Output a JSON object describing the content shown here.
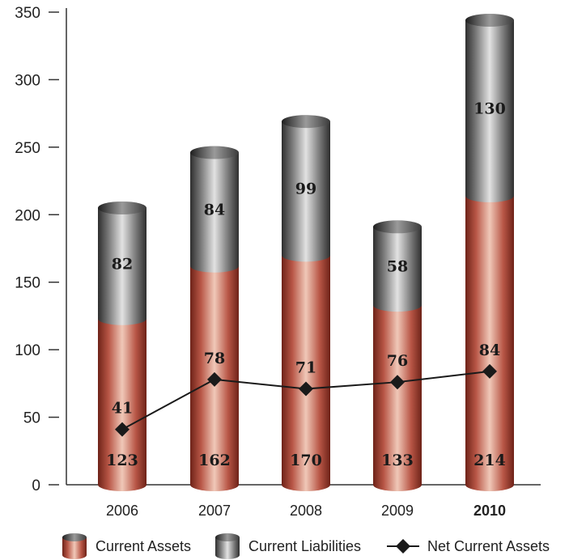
{
  "chart_data": {
    "type": "bar",
    "stacked": true,
    "categories": [
      "2006",
      "2007",
      "2008",
      "2009",
      "2010"
    ],
    "highlight_category": "2010",
    "series": [
      {
        "name": "Current Assets",
        "kind": "bar",
        "values": [
          123,
          162,
          170,
          133,
          214
        ],
        "color": "#b54a3c"
      },
      {
        "name": "Current Liabilities",
        "kind": "bar",
        "values": [
          82,
          84,
          99,
          58,
          130
        ],
        "color": "#7a7a7a"
      },
      {
        "name": "Net Current Assets",
        "kind": "line",
        "marker": "diamond",
        "values": [
          41,
          78,
          71,
          76,
          84
        ],
        "color": "#1a1a1a"
      }
    ],
    "yticks": [
      0,
      50,
      100,
      150,
      200,
      250,
      300,
      350
    ],
    "ylim": [
      0,
      350
    ],
    "legend_position": "bottom",
    "grid": false
  }
}
